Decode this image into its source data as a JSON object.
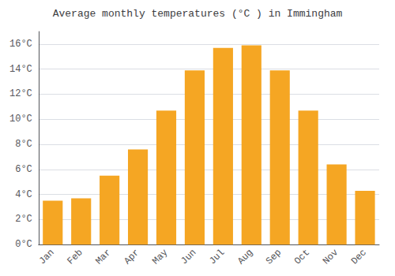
{
  "chart_data": {
    "type": "bar",
    "title": "Average monthly temperatures (°C ) in Immingham",
    "categories": [
      "Jan",
      "Feb",
      "Mar",
      "Apr",
      "May",
      "Jun",
      "Jul",
      "Aug",
      "Sep",
      "Oct",
      "Nov",
      "Dec"
    ],
    "values": [
      3.5,
      3.7,
      5.5,
      7.6,
      10.7,
      13.9,
      15.7,
      15.9,
      13.9,
      10.7,
      6.4,
      4.3
    ],
    "color": "#F5A623",
    "ylim": [
      0,
      17
    ],
    "yticks": [
      {
        "value": 0,
        "label": "0°C"
      },
      {
        "value": 2,
        "label": "2°C"
      },
      {
        "value": 4,
        "label": "4°C"
      },
      {
        "value": 6,
        "label": "6°C"
      },
      {
        "value": 8,
        "label": "8°C"
      },
      {
        "value": 10,
        "label": "10°C"
      },
      {
        "value": 12,
        "label": "12°C"
      },
      {
        "value": 14,
        "label": "14°C"
      },
      {
        "value": 16,
        "label": "16°C"
      }
    ],
    "grid": true
  }
}
